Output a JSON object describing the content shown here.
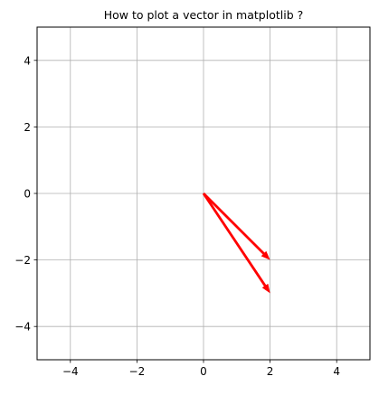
{
  "chart_data": {
    "type": "quiver",
    "title": "How to plot a vector in matplotlib ?",
    "xlabel": "",
    "ylabel": "",
    "xlim": [
      -5,
      5
    ],
    "ylim": [
      -5,
      5
    ],
    "xticks": [
      -4,
      -2,
      0,
      2,
      4
    ],
    "yticks": [
      -4,
      -2,
      0,
      2,
      4
    ],
    "grid": true,
    "series": [
      {
        "color": "#ff0000",
        "vectors": [
          {
            "origin": [
              0,
              0
            ],
            "components": [
              2,
              -2
            ]
          },
          {
            "origin": [
              0,
              0
            ],
            "components": [
              2,
              -3
            ]
          }
        ]
      }
    ]
  }
}
